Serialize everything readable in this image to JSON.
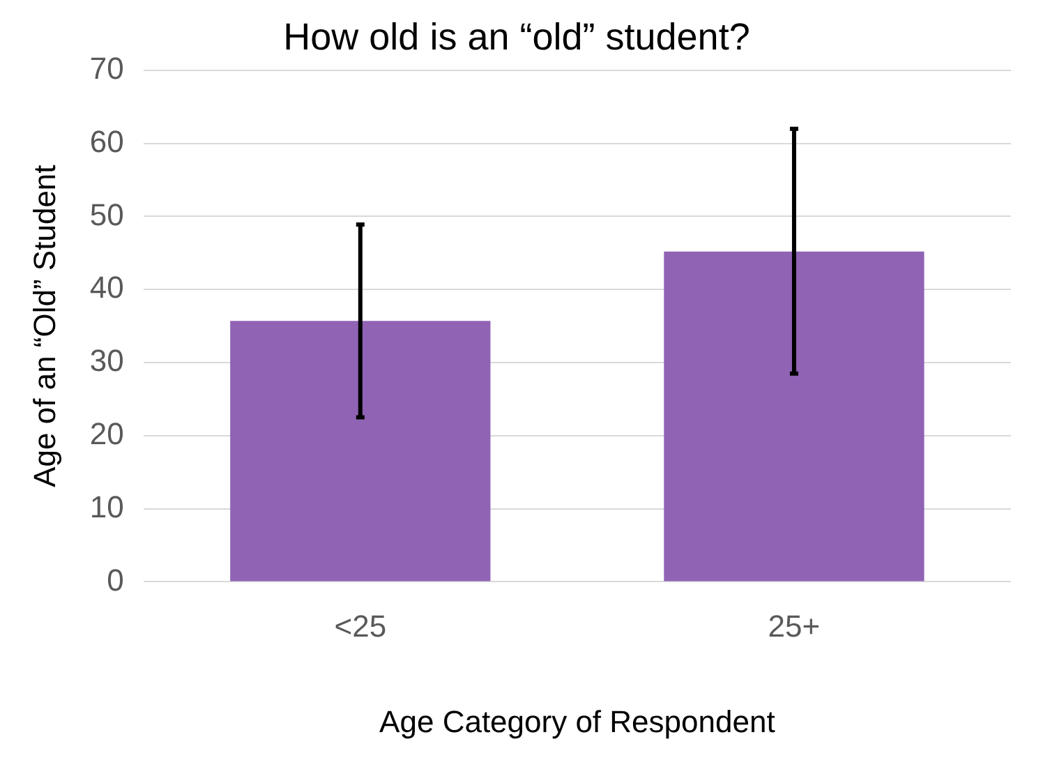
{
  "chart_data": {
    "type": "bar",
    "title": "How old is an “old” student?",
    "xlabel": "Age Category of Respondent",
    "ylabel": "Age of an “Old” Student",
    "categories": [
      "<25",
      "25+"
    ],
    "values": [
      35.7,
      45.2
    ],
    "errors": [
      [
        22.5,
        48.9
      ],
      [
        28.5,
        62.0
      ]
    ],
    "color": "#9063b5",
    "ylim": [
      0,
      70
    ],
    "yticks": [
      0,
      10,
      20,
      30,
      40,
      50,
      60,
      70
    ],
    "grid": "y",
    "legend": false
  }
}
